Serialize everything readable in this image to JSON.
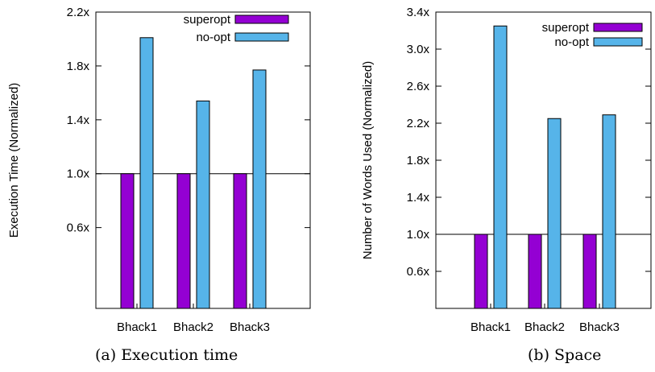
{
  "chart_data": [
    {
      "type": "bar",
      "ylabel": "Execution Time (Normalized)",
      "categories": [
        "Bhack1",
        "Bhack2",
        "Bhack3"
      ],
      "series": [
        {
          "name": "superopt",
          "values": [
            1.0,
            1.0,
            1.0
          ],
          "color": "#9400d3"
        },
        {
          "name": "no-opt",
          "values": [
            2.01,
            1.54,
            1.77
          ],
          "color": "#56b4e9"
        }
      ],
      "ylim": [
        0.0,
        2.2
      ],
      "yticks": [
        {
          "value": 0.6,
          "label": "0.6x"
        },
        {
          "value": 1.0,
          "label": "1.0x"
        },
        {
          "value": 1.4,
          "label": "1.4x"
        },
        {
          "value": 1.8,
          "label": "1.8x"
        },
        {
          "value": 2.2,
          "label": "2.2x"
        }
      ],
      "reference_line": 1.0,
      "legend": "top-right",
      "caption": "(a) Execution time"
    },
    {
      "type": "bar",
      "ylabel": "Number of Words Used (Normalized)",
      "categories": [
        "Bhack1",
        "Bhack2",
        "Bhack3"
      ],
      "series": [
        {
          "name": "superopt",
          "values": [
            1.0,
            1.0,
            1.0
          ],
          "color": "#9400d3"
        },
        {
          "name": "no-opt",
          "values": [
            3.25,
            2.25,
            2.29
          ],
          "color": "#56b4e9"
        }
      ],
      "ylim": [
        0.2,
        3.4
      ],
      "yticks": [
        {
          "value": 0.6,
          "label": "0.6x"
        },
        {
          "value": 1.0,
          "label": "1.0x"
        },
        {
          "value": 1.4,
          "label": "1.4x"
        },
        {
          "value": 1.8,
          "label": "1.8x"
        },
        {
          "value": 2.2,
          "label": "2.2x"
        },
        {
          "value": 2.6,
          "label": "2.6x"
        },
        {
          "value": 3.0,
          "label": "3.0x"
        },
        {
          "value": 3.4,
          "label": "3.4x"
        }
      ],
      "reference_line": 1.0,
      "legend": "top-right",
      "caption": "(b) Space"
    }
  ]
}
